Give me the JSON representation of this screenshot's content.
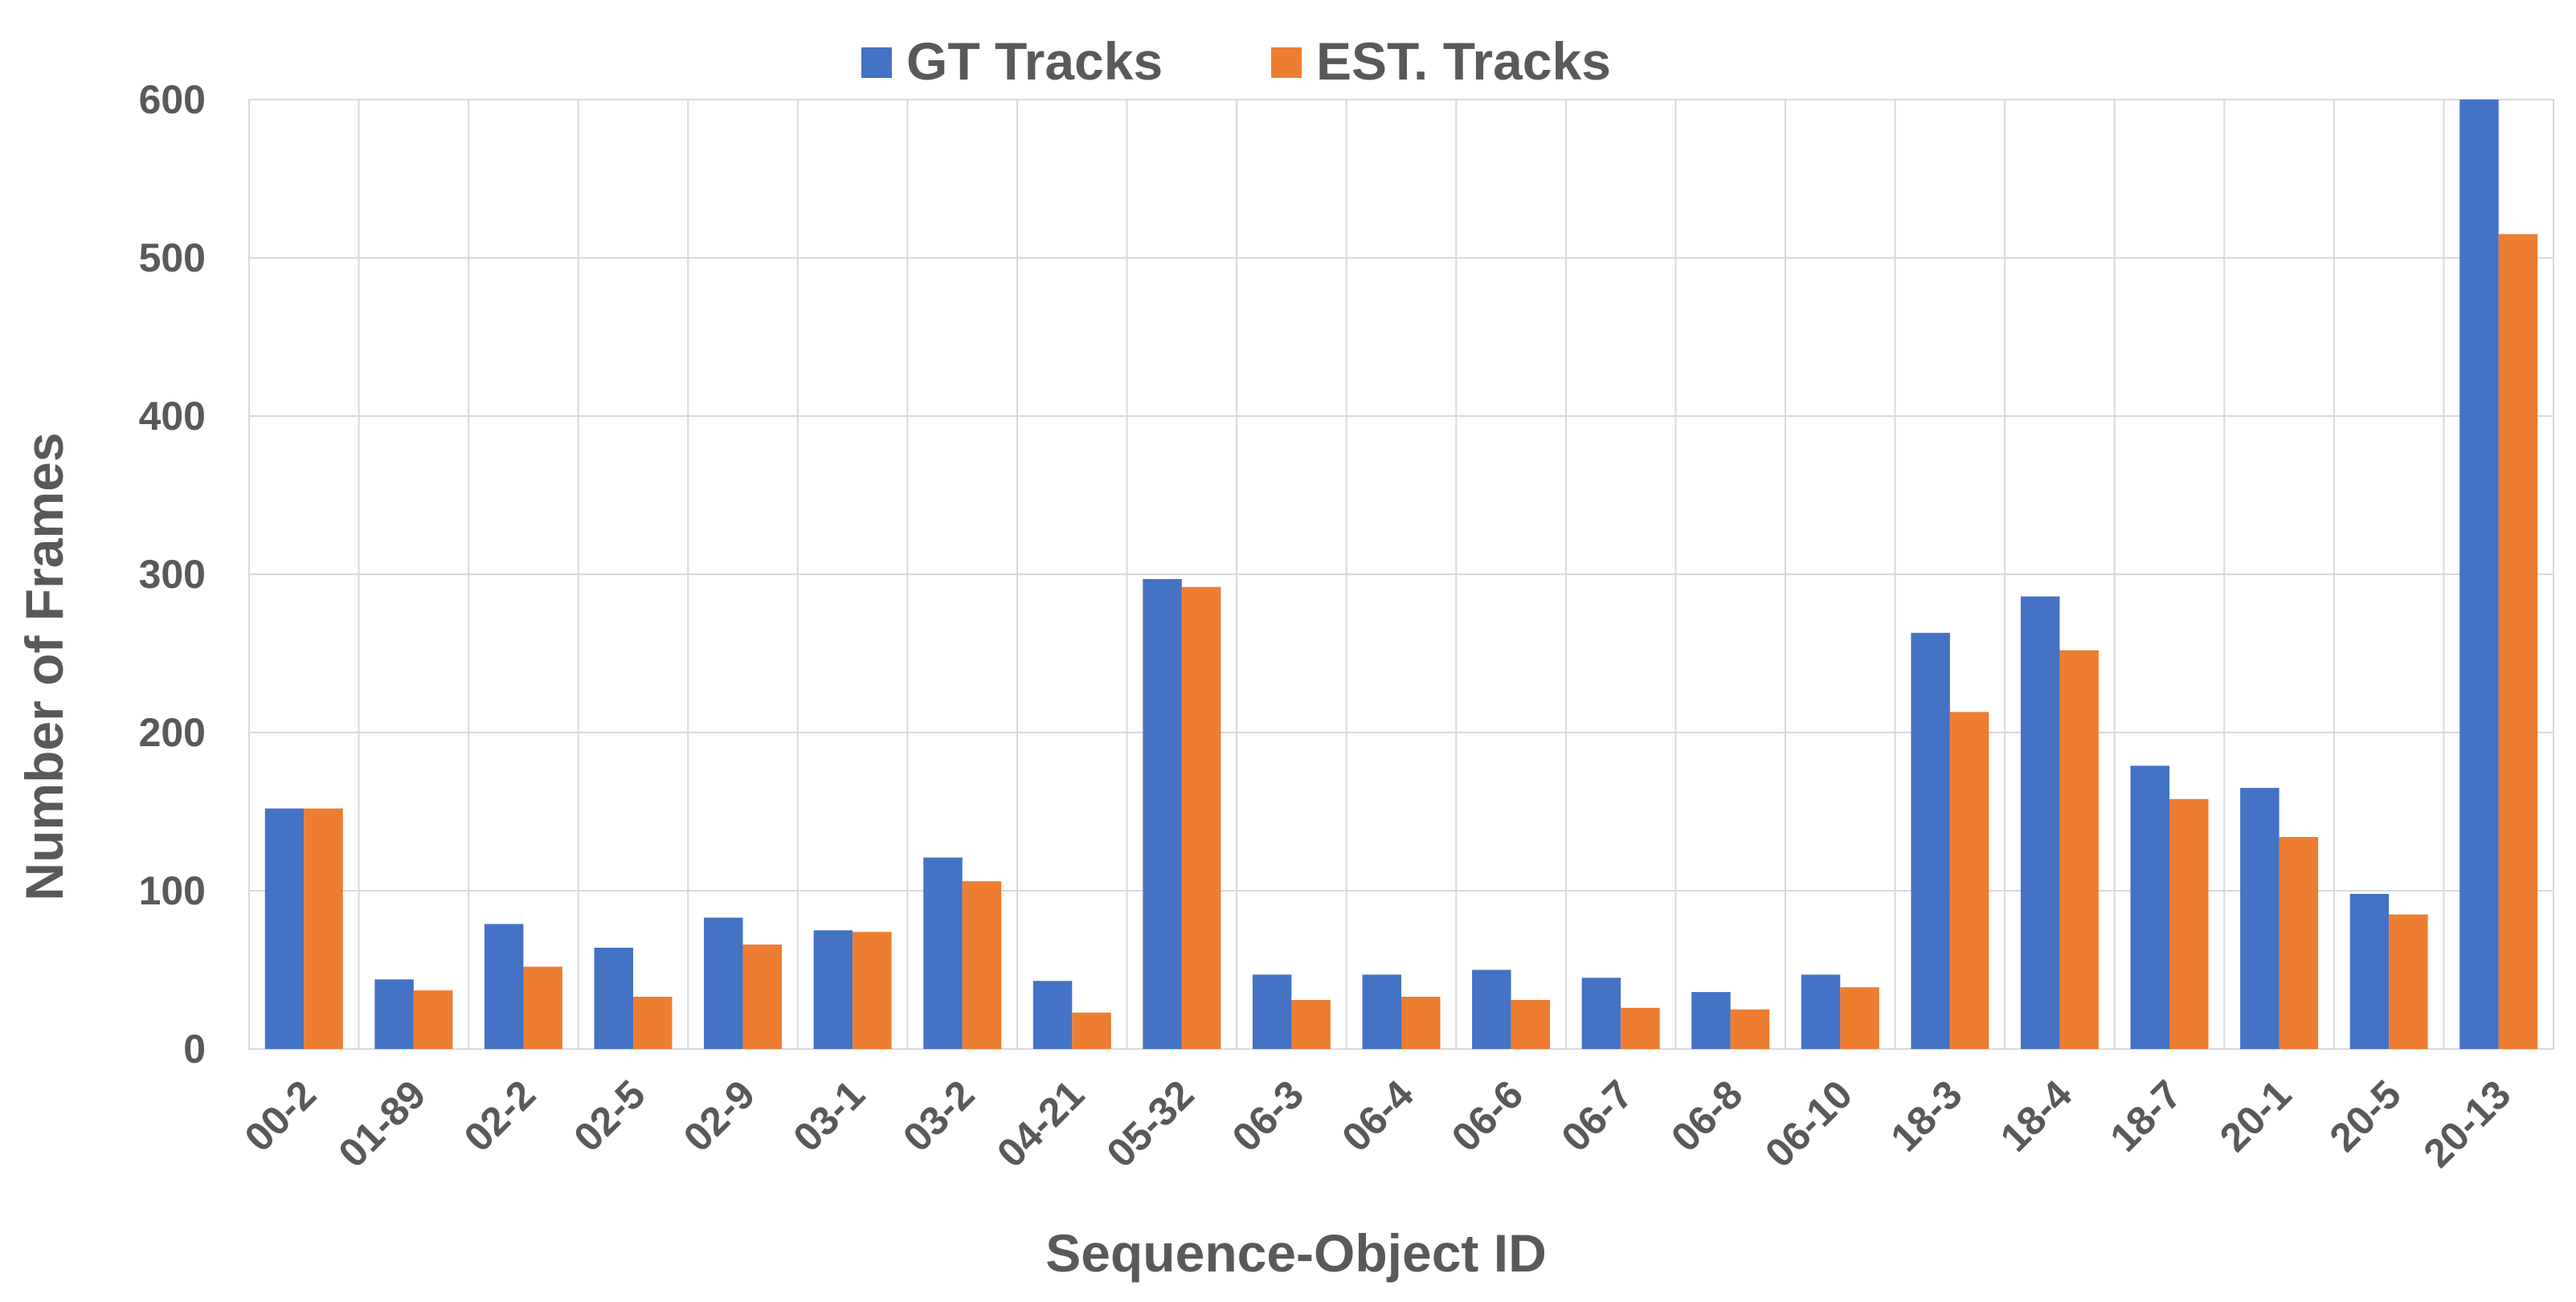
{
  "chart_data": {
    "type": "bar",
    "xlabel": "Sequence-Object ID",
    "ylabel": "Number of Frames",
    "ylim": [
      0,
      600
    ],
    "yticks": [
      0,
      100,
      200,
      300,
      400,
      500,
      600
    ],
    "grid": true,
    "legend_position": "top-center",
    "categories": [
      "00-2",
      "01-89",
      "02-2",
      "02-5",
      "02-9",
      "03-1",
      "03-2",
      "04-21",
      "05-32",
      "06-3",
      "06-4",
      "06-6",
      "06-7",
      "06-8",
      "06-10",
      "18-3",
      "18-4",
      "18-7",
      "20-1",
      "20-5",
      "20-13"
    ],
    "series": [
      {
        "name": "GT Tracks",
        "color": "#4472c4",
        "values": [
          152,
          44,
          79,
          64,
          83,
          75,
          121,
          43,
          297,
          47,
          47,
          50,
          45,
          36,
          47,
          263,
          286,
          179,
          165,
          98,
          600
        ]
      },
      {
        "name": "EST. Tracks",
        "color": "#ed7d31",
        "values": [
          152,
          37,
          52,
          33,
          66,
          74,
          106,
          23,
          292,
          31,
          33,
          31,
          26,
          25,
          39,
          213,
          252,
          158,
          134,
          85,
          515
        ]
      }
    ]
  }
}
